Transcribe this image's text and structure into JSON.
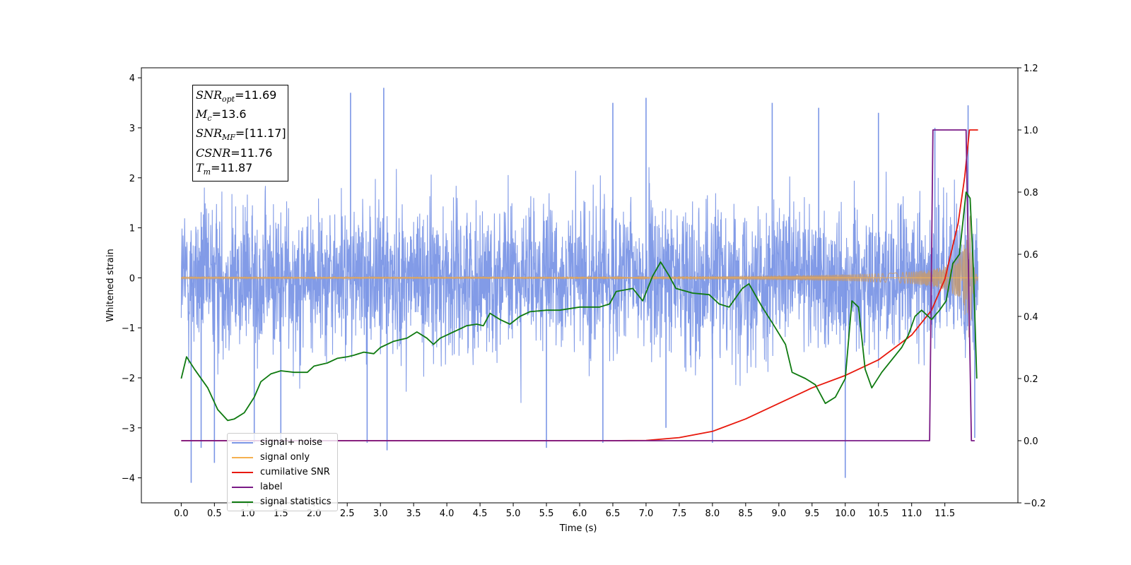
{
  "chart_data": {
    "type": "line",
    "xlabel": "Time (s)",
    "ylabel": "Whitened strain",
    "xlim": [
      -0.6,
      12.6
    ],
    "ylim": [
      -4.5,
      4.2
    ],
    "y2lim": [
      -0.2,
      1.2
    ],
    "x_ticks": [
      "0.0",
      "0.5",
      "1.0",
      "1.5",
      "2.0",
      "2.5",
      "3.0",
      "3.5",
      "4.0",
      "4.5",
      "5.0",
      "5.5",
      "6.0",
      "6.5",
      "7.0",
      "7.5",
      "8.0",
      "8.5",
      "9.0",
      "9.5",
      "10.0",
      "10.5",
      "11.0",
      "11.5"
    ],
    "y_ticks": [
      "4",
      "3",
      "2",
      "1",
      "0",
      "−1",
      "−2",
      "−3",
      "−4"
    ],
    "y2_ticks": [
      "1.2",
      "1.0",
      "0.8",
      "0.6",
      "0.4",
      "0.2",
      "0.0",
      "−0.2"
    ],
    "annotation": {
      "snr_opt": "=11.69",
      "mc": "=13.6",
      "snr_mf": "=[11.17]",
      "csnr": "=11.76",
      "tm": "=11.87"
    },
    "legend": [
      "signal+ noise",
      "signal only",
      "cumilative SNR",
      "label",
      "signal statistics"
    ],
    "colors": {
      "noise": "#7b96e6",
      "signal": "#f5b050",
      "signal_overlap": "#c09a78",
      "csnr": "#e8180c",
      "label": "#7a1a86",
      "stats": "#0f7a10"
    },
    "series": [
      {
        "name": "signal+ noise",
        "axis": "left",
        "x_range": [
          0.0,
          12.0
        ],
        "envelope_typical": 2.0,
        "spikes": [
          [
            0.15,
            -4.1
          ],
          [
            0.3,
            -3.4
          ],
          [
            0.5,
            -3.7
          ],
          [
            1.1,
            -3.3
          ],
          [
            1.5,
            -3.4
          ],
          [
            2.55,
            3.7
          ],
          [
            2.8,
            -3.3
          ],
          [
            3.05,
            3.8
          ],
          [
            3.1,
            -3.45
          ],
          [
            5.5,
            -3.4
          ],
          [
            6.35,
            -3.3
          ],
          [
            6.5,
            3.5
          ],
          [
            7.0,
            3.6
          ],
          [
            7.3,
            -3.0
          ],
          [
            8.0,
            -3.3
          ],
          [
            8.9,
            3.5
          ],
          [
            9.6,
            3.4
          ],
          [
            10.0,
            -4.0
          ],
          [
            10.5,
            3.3
          ],
          [
            11.35,
            3.0
          ],
          [
            11.85,
            3.45
          ],
          [
            11.95,
            -3.2
          ]
        ]
      },
      {
        "name": "signal only",
        "axis": "left",
        "x_range": [
          0.0,
          12.0
        ],
        "amplitude_end": 1.75,
        "merger_time": 11.87
      },
      {
        "name": "cumilative SNR",
        "axis": "right",
        "points": [
          [
            0.0,
            0.0
          ],
          [
            6.5,
            0.0
          ],
          [
            7.0,
            0.001
          ],
          [
            7.5,
            0.01
          ],
          [
            8.0,
            0.03
          ],
          [
            8.5,
            0.07
          ],
          [
            9.0,
            0.12
          ],
          [
            9.5,
            0.17
          ],
          [
            10.0,
            0.21
          ],
          [
            10.5,
            0.26
          ],
          [
            11.0,
            0.34
          ],
          [
            11.3,
            0.42
          ],
          [
            11.5,
            0.52
          ],
          [
            11.7,
            0.7
          ],
          [
            11.8,
            0.85
          ],
          [
            11.87,
            1.0
          ],
          [
            12.0,
            1.0
          ]
        ]
      },
      {
        "name": "label",
        "axis": "right",
        "points": [
          [
            0.0,
            0.0
          ],
          [
            11.27,
            0.0
          ],
          [
            11.32,
            1.0
          ],
          [
            11.82,
            1.0
          ],
          [
            11.9,
            0.0
          ],
          [
            11.95,
            0.0
          ]
        ]
      },
      {
        "name": "signal statistics",
        "axis": "right",
        "points": [
          [
            0.0,
            0.2
          ],
          [
            0.08,
            0.27
          ],
          [
            0.2,
            0.23
          ],
          [
            0.4,
            0.17
          ],
          [
            0.55,
            0.1
          ],
          [
            0.7,
            0.065
          ],
          [
            0.8,
            0.07
          ],
          [
            0.95,
            0.09
          ],
          [
            1.1,
            0.14
          ],
          [
            1.2,
            0.19
          ],
          [
            1.35,
            0.215
          ],
          [
            1.5,
            0.225
          ],
          [
            1.7,
            0.22
          ],
          [
            1.9,
            0.22
          ],
          [
            2.0,
            0.24
          ],
          [
            2.2,
            0.25
          ],
          [
            2.35,
            0.265
          ],
          [
            2.5,
            0.27
          ],
          [
            2.6,
            0.275
          ],
          [
            2.75,
            0.285
          ],
          [
            2.9,
            0.28
          ],
          [
            3.0,
            0.3
          ],
          [
            3.2,
            0.32
          ],
          [
            3.4,
            0.33
          ],
          [
            3.55,
            0.35
          ],
          [
            3.7,
            0.33
          ],
          [
            3.8,
            0.31
          ],
          [
            3.9,
            0.33
          ],
          [
            4.1,
            0.35
          ],
          [
            4.3,
            0.37
          ],
          [
            4.45,
            0.375
          ],
          [
            4.55,
            0.37
          ],
          [
            4.65,
            0.41
          ],
          [
            4.8,
            0.39
          ],
          [
            4.95,
            0.375
          ],
          [
            5.1,
            0.4
          ],
          [
            5.25,
            0.415
          ],
          [
            5.5,
            0.42
          ],
          [
            5.7,
            0.42
          ],
          [
            6.0,
            0.43
          ],
          [
            6.3,
            0.43
          ],
          [
            6.45,
            0.44
          ],
          [
            6.55,
            0.48
          ],
          [
            6.8,
            0.49
          ],
          [
            6.95,
            0.45
          ],
          [
            7.1,
            0.53
          ],
          [
            7.22,
            0.575
          ],
          [
            7.35,
            0.53
          ],
          [
            7.45,
            0.49
          ],
          [
            7.7,
            0.475
          ],
          [
            7.95,
            0.47
          ],
          [
            8.1,
            0.44
          ],
          [
            8.25,
            0.43
          ],
          [
            8.45,
            0.49
          ],
          [
            8.55,
            0.505
          ],
          [
            8.75,
            0.43
          ],
          [
            8.9,
            0.38
          ],
          [
            9.1,
            0.31
          ],
          [
            9.2,
            0.22
          ],
          [
            9.4,
            0.2
          ],
          [
            9.55,
            0.18
          ],
          [
            9.7,
            0.12
          ],
          [
            9.85,
            0.14
          ],
          [
            10.0,
            0.2
          ],
          [
            10.1,
            0.45
          ],
          [
            10.2,
            0.43
          ],
          [
            10.3,
            0.23
          ],
          [
            10.4,
            0.17
          ],
          [
            10.55,
            0.22
          ],
          [
            10.7,
            0.26
          ],
          [
            10.85,
            0.3
          ],
          [
            10.95,
            0.34
          ],
          [
            11.05,
            0.4
          ],
          [
            11.15,
            0.42
          ],
          [
            11.3,
            0.39
          ],
          [
            11.42,
            0.42
          ],
          [
            11.52,
            0.45
          ],
          [
            11.62,
            0.57
          ],
          [
            11.72,
            0.6
          ],
          [
            11.82,
            0.8
          ],
          [
            11.88,
            0.78
          ],
          [
            11.93,
            0.55
          ],
          [
            11.98,
            0.2
          ]
        ]
      }
    ]
  }
}
